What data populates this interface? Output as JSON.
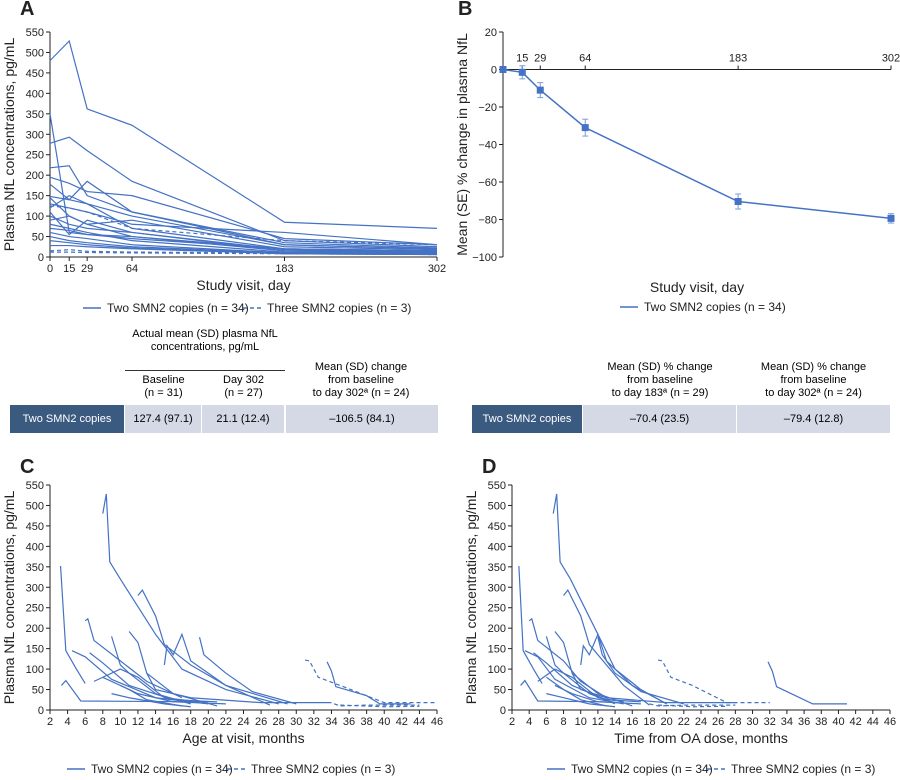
{
  "colors": {
    "line": "#4472c4",
    "table_header": "#3b5a80",
    "table_cell": "#d5d9e6"
  },
  "legend": {
    "two": "Two SMN2 copies (n = 34)",
    "three": "Three SMN2 copies (n = 3)"
  },
  "tableA": {
    "group_header": "Actual mean (SD) plasma NfL concentrations, pg/mL",
    "col1": "Baseline",
    "col1n": "(n = 31)",
    "col2": "Day 302",
    "col2n": "(n = 27)",
    "col3a": "Mean (SD) change",
    "col3b": "from baseline",
    "col3c": "to day 302ª (n = 24)",
    "row_label": "Two SMN2 copies",
    "values": [
      "127.4 (97.1)",
      "21.1 (12.4)",
      "–106.5 (84.1)"
    ]
  },
  "tableB": {
    "col1a": "Mean (SD) % change",
    "col1b": "from baseline",
    "col1c": "to day 183ª (n = 29)",
    "col2a": "Mean (SD) % change",
    "col2b": "from baseline",
    "col2c": "to day 302ª (n = 24)",
    "row_label": "Two SMN2 copies",
    "values": [
      "–70.4 (23.5)",
      "–79.4 (12.8)"
    ]
  },
  "chart_data": [
    {
      "panel": "A",
      "type": "line",
      "xlabel": "Study visit, day",
      "ylabel": "Plasma NfL concentrations, pg/mL",
      "xticks": [
        0,
        15,
        29,
        64,
        183,
        302
      ],
      "yticks": [
        0,
        50,
        100,
        150,
        200,
        250,
        300,
        350,
        400,
        450,
        500,
        550
      ],
      "xlim": [
        0,
        302
      ],
      "ylim": [
        0,
        550
      ],
      "x": [
        0,
        15,
        29,
        64,
        183,
        302
      ],
      "series_two": [
        [
          480,
          528,
          362,
          322,
          85,
          70
        ],
        [
          350,
          60,
          55,
          50,
          20,
          15
        ],
        [
          278,
          293,
          260,
          185,
          40,
          25
        ],
        [
          218,
          223,
          150,
          110,
          30,
          20
        ],
        [
          195,
          180,
          160,
          150,
          45,
          30
        ],
        [
          178,
          140,
          185,
          110,
          35,
          22
        ],
        [
          148,
          140,
          130,
          100,
          30,
          20
        ],
        [
          145,
          100,
          80,
          90,
          25,
          18
        ],
        [
          120,
          150,
          130,
          70,
          20,
          15
        ],
        [
          110,
          55,
          90,
          60,
          18,
          12
        ],
        [
          100,
          80,
          70,
          60,
          15,
          10
        ],
        [
          90,
          100,
          80,
          50,
          15,
          12
        ],
        [
          80,
          70,
          60,
          40,
          12,
          10
        ],
        [
          70,
          65,
          55,
          45,
          20,
          15
        ],
        [
          60,
          50,
          45,
          30,
          10,
          8
        ],
        [
          50,
          40,
          35,
          25,
          10,
          8
        ],
        [
          40,
          35,
          30,
          22,
          8,
          6
        ],
        [
          28,
          28,
          25,
          20,
          8,
          6
        ],
        [
          130,
          120,
          110,
          80,
          60,
          30
        ]
      ],
      "series_three": [
        [
          125,
          120,
          110,
          70,
          40,
          30
        ],
        [
          15,
          18,
          14,
          12,
          10,
          8
        ],
        [
          12,
          12,
          11,
          10,
          8,
          6
        ]
      ]
    },
    {
      "panel": "B",
      "type": "line",
      "xlabel": "Study visit, day",
      "ylabel": "Mean (SE) % change in plasma NfL",
      "xticks": [
        15,
        29,
        64,
        183,
        302
      ],
      "yticks": [
        20,
        0,
        -20,
        -40,
        -60,
        -80,
        -100
      ],
      "xlim": [
        0,
        302
      ],
      "ylim": [
        -100,
        20
      ],
      "series": [
        {
          "x": [
            0,
            15,
            29,
            64,
            183,
            302
          ],
          "y": [
            0,
            -1.5,
            -11,
            -31,
            -70.4,
            -79.4
          ],
          "se": [
            0,
            3.5,
            4,
            4.5,
            4,
            2.5
          ]
        }
      ]
    },
    {
      "panel": "C",
      "type": "line",
      "xlabel": "Age at visit, months",
      "ylabel": "Plasma NfL concentrations, pg/mL",
      "xticks": [
        2,
        4,
        6,
        8,
        10,
        12,
        14,
        16,
        18,
        20,
        22,
        24,
        26,
        28,
        30,
        32,
        34,
        36,
        38,
        40,
        42,
        44,
        46
      ],
      "yticks": [
        0,
        50,
        100,
        150,
        200,
        250,
        300,
        350,
        400,
        450,
        500,
        550
      ],
      "xlim": [
        2,
        46
      ],
      "ylim": [
        0,
        550
      ],
      "series_two": [
        [
          [
            3.2,
            352
          ],
          [
            3.8,
            145
          ],
          [
            5,
            100
          ],
          [
            6,
            65
          ]
        ],
        [
          [
            3.3,
            60
          ],
          [
            3.8,
            72
          ],
          [
            5.5,
            22
          ],
          [
            20,
            20
          ]
        ],
        [
          [
            8,
            480
          ],
          [
            8.4,
            528
          ],
          [
            8.8,
            362
          ],
          [
            10,
            320
          ],
          [
            14,
            185
          ],
          [
            17,
            100
          ],
          [
            22,
            50
          ],
          [
            28,
            15
          ]
        ],
        [
          [
            12,
            280
          ],
          [
            12.5,
            293
          ],
          [
            14,
            230
          ],
          [
            15,
            160
          ],
          [
            18,
            110
          ],
          [
            22,
            60
          ],
          [
            27,
            12
          ]
        ],
        [
          [
            6,
            218
          ],
          [
            6.3,
            223
          ],
          [
            7,
            170
          ],
          [
            10,
            120
          ],
          [
            13,
            70
          ],
          [
            17,
            30
          ]
        ],
        [
          [
            9,
            180
          ],
          [
            10,
            110
          ],
          [
            11,
            90
          ],
          [
            14,
            40
          ],
          [
            18,
            15
          ]
        ],
        [
          [
            11,
            192
          ],
          [
            12,
            165
          ],
          [
            13,
            90
          ],
          [
            16,
            40
          ],
          [
            21,
            10
          ]
        ],
        [
          [
            19,
            178
          ],
          [
            19.5,
            135
          ],
          [
            22,
            90
          ],
          [
            25,
            45
          ],
          [
            30,
            15
          ]
        ],
        [
          [
            15,
            110
          ],
          [
            15.3,
            157
          ],
          [
            16,
            135
          ],
          [
            17,
            185
          ],
          [
            18,
            120
          ],
          [
            22,
            60
          ],
          [
            29,
            15
          ]
        ],
        [
          [
            4.5,
            145
          ],
          [
            6,
            130
          ],
          [
            9,
            75
          ],
          [
            14,
            30
          ],
          [
            20,
            15
          ]
        ],
        [
          [
            6.5,
            140
          ],
          [
            8,
            115
          ],
          [
            11,
            60
          ],
          [
            16,
            25
          ],
          [
            21,
            20
          ]
        ],
        [
          [
            7,
            70
          ],
          [
            10,
            100
          ],
          [
            12,
            80
          ],
          [
            15,
            30
          ],
          [
            19,
            20
          ]
        ],
        [
          [
            8,
            80
          ],
          [
            11,
            50
          ],
          [
            13,
            25
          ],
          [
            17,
            10
          ]
        ],
        [
          [
            10,
            60
          ],
          [
            12,
            40
          ],
          [
            16,
            20
          ],
          [
            22,
            15
          ]
        ],
        [
          [
            9,
            40
          ],
          [
            11,
            30
          ],
          [
            15,
            15
          ],
          [
            18,
            8
          ]
        ],
        [
          [
            13,
            90
          ],
          [
            14,
            50
          ],
          [
            18,
            30
          ],
          [
            26,
            18
          ],
          [
            34,
            18
          ]
        ],
        [
          [
            33.5,
            118
          ],
          [
            34,
            95
          ],
          [
            34.5,
            57
          ],
          [
            38,
            35
          ],
          [
            39.5,
            15
          ],
          [
            43,
            15
          ]
        ]
      ],
      "series_three": [
        [
          [
            31,
            122
          ],
          [
            31.5,
            120
          ],
          [
            32.5,
            80
          ],
          [
            35,
            60
          ],
          [
            40,
            18
          ],
          [
            46,
            18
          ]
        ],
        [
          [
            34.3,
            15
          ],
          [
            35,
            10
          ],
          [
            38,
            12
          ],
          [
            44,
            12
          ]
        ],
        [
          [
            35,
            12
          ],
          [
            40,
            8
          ],
          [
            44,
            9
          ]
        ]
      ]
    },
    {
      "panel": "D",
      "type": "line",
      "xlabel": "Time from OA dose, months",
      "ylabel": "Plasma NfL concentrations, pg/mL",
      "xticks": [
        2,
        4,
        6,
        8,
        10,
        12,
        14,
        16,
        18,
        20,
        22,
        24,
        26,
        28,
        30,
        32,
        34,
        36,
        38,
        40,
        42,
        44,
        46
      ],
      "yticks": [
        0,
        50,
        100,
        150,
        200,
        250,
        300,
        350,
        400,
        450,
        500,
        550
      ],
      "xlim": [
        2,
        46
      ],
      "ylim": [
        0,
        550
      ],
      "series_two": [
        [
          [
            2.8,
            352
          ],
          [
            3.3,
            145
          ],
          [
            4.5,
            100
          ],
          [
            5.5,
            65
          ]
        ],
        [
          [
            3,
            60
          ],
          [
            3.5,
            72
          ],
          [
            5,
            22
          ],
          [
            13,
            20
          ]
        ],
        [
          [
            6.8,
            480
          ],
          [
            7.2,
            528
          ],
          [
            7.6,
            362
          ],
          [
            8.8,
            320
          ],
          [
            12,
            185
          ],
          [
            14,
            100
          ],
          [
            17,
            50
          ],
          [
            20,
            15
          ]
        ],
        [
          [
            8,
            280
          ],
          [
            8.5,
            293
          ],
          [
            10,
            230
          ],
          [
            11,
            160
          ],
          [
            13,
            110
          ],
          [
            15,
            60
          ],
          [
            18,
            12
          ]
        ],
        [
          [
            4,
            218
          ],
          [
            4.3,
            223
          ],
          [
            5,
            170
          ],
          [
            8,
            120
          ],
          [
            10,
            70
          ],
          [
            13,
            30
          ]
        ],
        [
          [
            6,
            180
          ],
          [
            7,
            110
          ],
          [
            8,
            90
          ],
          [
            11,
            40
          ],
          [
            14,
            15
          ]
        ],
        [
          [
            7,
            192
          ],
          [
            8,
            165
          ],
          [
            9,
            90
          ],
          [
            12,
            40
          ],
          [
            16,
            10
          ]
        ],
        [
          [
            12,
            178
          ],
          [
            12.5,
            135
          ],
          [
            14,
            90
          ],
          [
            17,
            45
          ],
          [
            22,
            15
          ]
        ],
        [
          [
            10,
            110
          ],
          [
            10.3,
            157
          ],
          [
            11,
            135
          ],
          [
            12,
            185
          ],
          [
            13,
            120
          ],
          [
            16,
            60
          ],
          [
            20,
            15
          ]
        ],
        [
          [
            3.5,
            145
          ],
          [
            5,
            130
          ],
          [
            7,
            75
          ],
          [
            11,
            30
          ],
          [
            15,
            15
          ]
        ],
        [
          [
            4.5,
            140
          ],
          [
            6,
            115
          ],
          [
            9,
            60
          ],
          [
            13,
            25
          ],
          [
            17,
            20
          ]
        ],
        [
          [
            5,
            70
          ],
          [
            7,
            100
          ],
          [
            9,
            80
          ],
          [
            12,
            30
          ],
          [
            15,
            20
          ]
        ],
        [
          [
            6,
            80
          ],
          [
            8,
            50
          ],
          [
            10,
            25
          ],
          [
            13,
            10
          ]
        ],
        [
          [
            7,
            60
          ],
          [
            9,
            40
          ],
          [
            12,
            20
          ],
          [
            17,
            15
          ]
        ],
        [
          [
            6,
            40
          ],
          [
            8,
            30
          ],
          [
            11,
            15
          ],
          [
            14,
            8
          ]
        ],
        [
          [
            9,
            90
          ],
          [
            10,
            50
          ],
          [
            13,
            30
          ],
          [
            20,
            18
          ],
          [
            28,
            18
          ]
        ],
        [
          [
            31.8,
            118
          ],
          [
            32.3,
            95
          ],
          [
            32.8,
            57
          ],
          [
            35,
            35
          ],
          [
            37,
            15
          ],
          [
            41,
            15
          ]
        ]
      ],
      "series_three": [
        [
          [
            19,
            122
          ],
          [
            19.5,
            120
          ],
          [
            20.5,
            80
          ],
          [
            23,
            60
          ],
          [
            27,
            18
          ],
          [
            32,
            18
          ]
        ],
        [
          [
            18,
            15
          ],
          [
            19,
            10
          ],
          [
            22,
            12
          ],
          [
            28,
            12
          ]
        ],
        [
          [
            19,
            12
          ],
          [
            23,
            8
          ],
          [
            27,
            9
          ]
        ]
      ]
    }
  ]
}
